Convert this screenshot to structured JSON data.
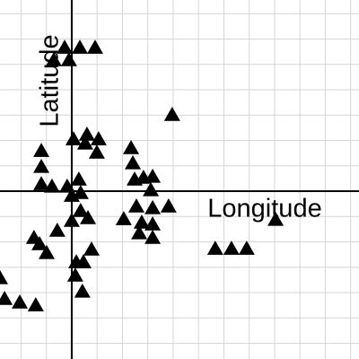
{
  "chart_data": {
    "type": "scatter",
    "x_label": "Longitude",
    "y_label": "Latitude",
    "xlim": [
      -2.83,
      11.33
    ],
    "ylim": [
      -6.62,
      7.54
    ],
    "xticks": [
      -2,
      -1,
      0,
      1,
      2,
      3,
      4,
      5,
      6,
      7,
      8,
      9,
      10,
      11
    ],
    "yticks": [
      -6,
      -5,
      -4,
      -3,
      -2,
      -1,
      0,
      1,
      2,
      3,
      4,
      5,
      6,
      7
    ],
    "grid": true,
    "marker": "triangle",
    "color": "#000000",
    "x": [
      -0.28,
      0.32,
      0.92,
      -0.71,
      -0.11,
      3.96,
      0.07,
      0.6,
      1.06,
      0.53,
      0.99,
      2.34,
      -1.2,
      -1.2,
      2.41,
      -1.2,
      -0.78,
      -0.18,
      0.28,
      0.35,
      0,
      2.48,
      2.83,
      3.19,
      3.12,
      2.55,
      3.19,
      3.82,
      2.05,
      0.35,
      0.64,
      0,
      2.76,
      3.19,
      2.66,
      3.19,
      -0.57,
      -1.49,
      -1.27,
      -0.99,
      0.78,
      0.18,
      0.46,
      0.14,
      0.42,
      -2.65,
      -2.05,
      -1.42,
      5.66,
      6.3,
      6.9,
      8.04,
      -2.83
    ],
    "y": [
      5.66,
      5.66,
      5.66,
      5.17,
      5.17,
      3.01,
      2.05,
      2.23,
      2.05,
      1.88,
      1.52,
      1.7,
      1.59,
      0.96,
      1.1,
      0.28,
      0.18,
      0.18,
      0.46,
      -0.07,
      -0.18,
      0.46,
      0.53,
      0.57,
      0.04,
      -0.6,
      -0.67,
      -0.6,
      -1.1,
      -0.78,
      -1.06,
      -1.17,
      -1.24,
      -1.31,
      -1.66,
      -1.84,
      -1.56,
      -1.84,
      -2.09,
      -2.44,
      -2.3,
      -2.8,
      -2.8,
      -3.33,
      -3.96,
      -4.25,
      -4.39,
      -4.5,
      -2.27,
      -2.27,
      -2.27,
      -1.13,
      -3.43
    ]
  }
}
